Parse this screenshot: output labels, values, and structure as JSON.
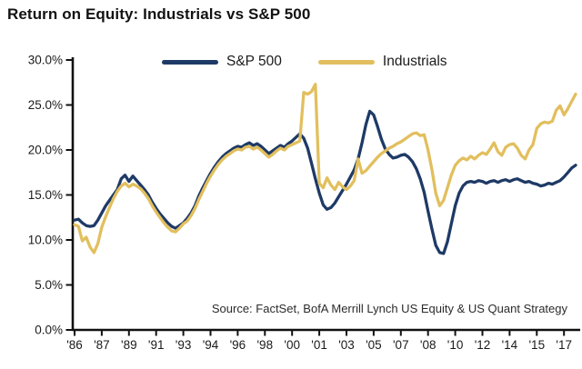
{
  "title": "Return on Equity: Industrials vs S&P 500",
  "source": "Source: FactSet, BofA Merrill Lynch US Equity & US Quant Strategy",
  "legend": {
    "items": [
      {
        "label": "S&P 500",
        "color": "#1e3a66"
      },
      {
        "label": "Industrials",
        "color": "#e2bf5e"
      }
    ]
  },
  "colors": {
    "sp500": "#1e3a66",
    "industrials": "#e2bf5e",
    "axis": "#111111",
    "background": "#ffffff"
  },
  "chart_data": {
    "type": "line",
    "title": "Return on Equity: Industrials vs S&P 500",
    "xlabel": "",
    "ylabel": "",
    "ylim": [
      0,
      30
    ],
    "y_tick_labels": [
      "0.0%",
      "5.0%",
      "10.0%",
      "15.0%",
      "20.0%",
      "25.0%",
      "30.0%"
    ],
    "x_tick_labels": [
      "'86",
      "'87",
      "'89",
      "'91",
      "'93",
      "'94",
      "'96",
      "'98",
      "'00",
      "'01",
      "'03",
      "'05",
      "'07",
      "'08",
      "'10",
      "'12",
      "'14",
      "'15",
      "'17"
    ],
    "x_tick_every": 7,
    "x_resolution": "quarterly",
    "grid": false,
    "legend_position": "top",
    "series": [
      {
        "name": "S&P 500",
        "color": "#1e3a66",
        "values": [
          12.2,
          12.3,
          11.9,
          11.6,
          11.5,
          11.6,
          12.2,
          13.0,
          13.8,
          14.4,
          15.0,
          15.6,
          16.8,
          17.2,
          16.5,
          17.1,
          16.6,
          16.1,
          15.6,
          15.0,
          14.2,
          13.5,
          12.9,
          12.4,
          11.9,
          11.5,
          11.3,
          11.6,
          11.9,
          12.4,
          13.0,
          13.8,
          14.9,
          15.8,
          16.6,
          17.4,
          18.1,
          18.7,
          19.2,
          19.6,
          19.9,
          20.2,
          20.4,
          20.3,
          20.6,
          20.8,
          20.5,
          20.7,
          20.4,
          20.0,
          19.6,
          19.9,
          20.2,
          20.5,
          20.3,
          20.7,
          21.0,
          21.4,
          21.8,
          21.3,
          20.2,
          18.5,
          16.8,
          15.2,
          13.9,
          13.4,
          13.6,
          14.1,
          14.8,
          15.5,
          16.2,
          17.0,
          17.8,
          19.0,
          20.8,
          22.8,
          24.3,
          23.9,
          22.6,
          21.2,
          20.1,
          19.5,
          19.1,
          19.2,
          19.4,
          19.5,
          19.2,
          18.7,
          17.9,
          16.8,
          15.3,
          13.2,
          11.2,
          9.4,
          8.6,
          8.5,
          9.8,
          11.8,
          13.8,
          15.2,
          16.0,
          16.4,
          16.5,
          16.4,
          16.6,
          16.5,
          16.3,
          16.5,
          16.6,
          16.4,
          16.6,
          16.7,
          16.5,
          16.7,
          16.8,
          16.6,
          16.4,
          16.5,
          16.3,
          16.2,
          16.0,
          16.1,
          16.3,
          16.2,
          16.4,
          16.6,
          17.0,
          17.5,
          18.0,
          18.3
        ]
      },
      {
        "name": "Industrials",
        "color": "#e2bf5e",
        "values": [
          11.7,
          11.5,
          9.9,
          10.3,
          9.2,
          8.6,
          9.6,
          11.4,
          12.6,
          13.6,
          14.6,
          15.4,
          16.0,
          16.3,
          15.9,
          16.2,
          16.0,
          15.7,
          15.2,
          14.6,
          13.8,
          13.1,
          12.5,
          11.9,
          11.4,
          11.0,
          10.9,
          11.3,
          11.8,
          12.1,
          12.7,
          13.5,
          14.5,
          15.4,
          16.3,
          17.1,
          17.8,
          18.4,
          18.9,
          19.3,
          19.6,
          19.9,
          20.1,
          20.0,
          20.3,
          20.4,
          20.1,
          20.3,
          20.0,
          19.6,
          19.2,
          19.5,
          19.9,
          20.2,
          20.0,
          20.4,
          20.6,
          20.8,
          21.0,
          26.4,
          26.2,
          26.5,
          27.3,
          16.3,
          15.8,
          16.9,
          16.1,
          15.6,
          16.4,
          15.9,
          15.6,
          16.0,
          16.6,
          19.0,
          17.4,
          17.7,
          18.2,
          18.7,
          19.2,
          19.6,
          19.9,
          20.2,
          20.4,
          20.7,
          20.9,
          21.2,
          21.5,
          21.8,
          21.9,
          21.6,
          21.7,
          20.0,
          17.8,
          15.2,
          13.8,
          14.4,
          15.8,
          17.2,
          18.3,
          18.8,
          19.1,
          18.9,
          19.3,
          19.0,
          19.4,
          19.7,
          19.5,
          20.1,
          20.8,
          19.8,
          19.4,
          20.3,
          20.6,
          20.7,
          20.2,
          19.4,
          19.0,
          20.0,
          20.6,
          22.4,
          22.9,
          23.1,
          23.0,
          23.2,
          24.4,
          24.9,
          23.9,
          24.6,
          25.4,
          26.2
        ]
      }
    ]
  }
}
